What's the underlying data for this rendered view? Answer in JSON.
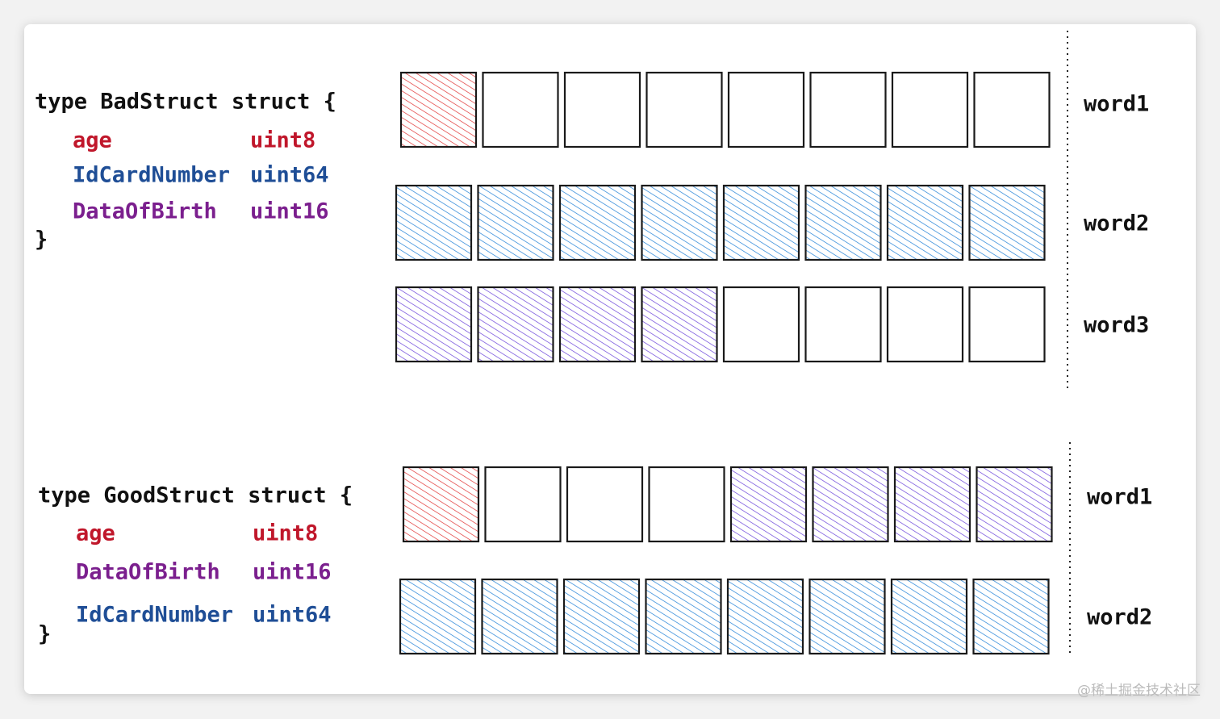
{
  "structs": [
    {
      "header": "type BadStruct struct {",
      "fields": [
        {
          "name": "age",
          "type": "uint8",
          "color": "#c0172b"
        },
        {
          "name": "IdCardNumber",
          "type": "uint64",
          "color": "#1f4e96"
        },
        {
          "name": "DataOfBirth",
          "type": "uint16",
          "color": "#7b1f8e"
        }
      ],
      "close": "}",
      "words": [
        {
          "label": "word1",
          "cells": [
            "#e03131",
            null,
            null,
            null,
            null,
            null,
            null,
            null
          ]
        },
        {
          "label": "word2",
          "cells": [
            "#1c7ed6",
            "#1c7ed6",
            "#1c7ed6",
            "#1c7ed6",
            "#1c7ed6",
            "#1c7ed6",
            "#1c7ed6",
            "#1c7ed6"
          ]
        },
        {
          "label": "word3",
          "cells": [
            "#6741d9",
            "#6741d9",
            "#6741d9",
            "#6741d9",
            null,
            null,
            null,
            null
          ]
        }
      ]
    },
    {
      "header": "type GoodStruct struct {",
      "fields": [
        {
          "name": "age",
          "type": "uint8",
          "color": "#c0172b"
        },
        {
          "name": "DataOfBirth",
          "type": "uint16",
          "color": "#7b1f8e"
        },
        {
          "name": "IdCardNumber",
          "type": "uint64",
          "color": "#1f4e96"
        }
      ],
      "close": "}",
      "words": [
        {
          "label": "word1",
          "cells": [
            "#e03131",
            null,
            null,
            null,
            "#6741d9",
            "#6741d9",
            "#6741d9",
            "#6741d9"
          ]
        },
        {
          "label": "word2",
          "cells": [
            "#1c7ed6",
            "#1c7ed6",
            "#1c7ed6",
            "#1c7ed6",
            "#1c7ed6",
            "#1c7ed6",
            "#1c7ed6",
            "#1c7ed6"
          ]
        }
      ]
    }
  ],
  "watermark": "@稀土掘金技术社区"
}
